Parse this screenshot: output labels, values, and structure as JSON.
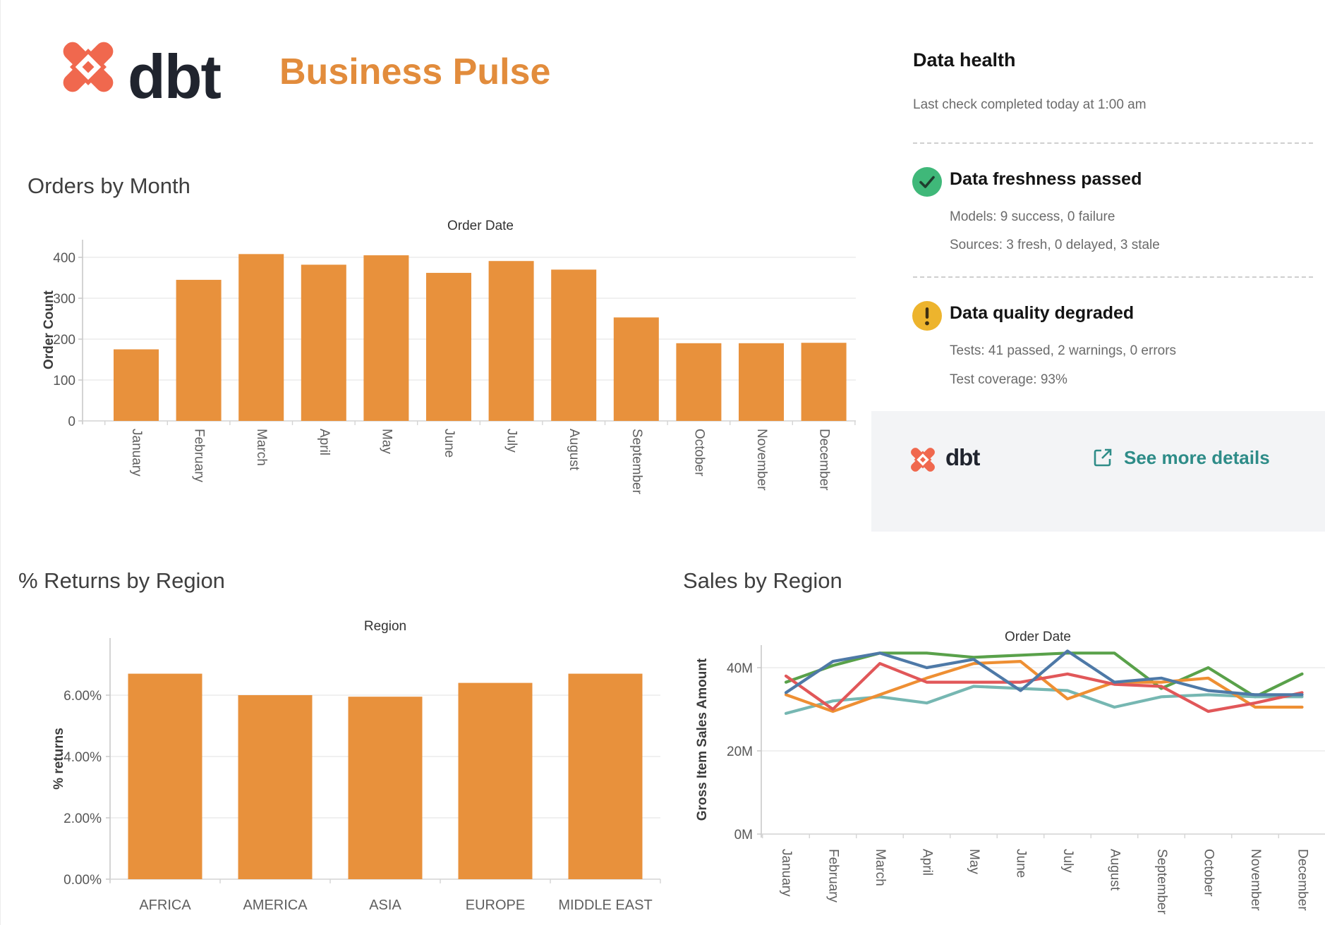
{
  "header": {
    "brand_wordmark": "dbt",
    "title": "Business Pulse",
    "title_color": "#E28C3C",
    "logo_color": "#F0684E"
  },
  "data_health": {
    "title": "Data health",
    "last_check": "Last check completed today at 1:00 am",
    "sections": [
      {
        "status": "passed",
        "icon": "check-circle-icon",
        "icon_color": "#3FB879",
        "title": "Data freshness passed",
        "lines": [
          "Models: 9 success, 0 failure",
          "Sources: 3 fresh, 0 delayed, 3 stale"
        ]
      },
      {
        "status": "warning",
        "icon": "warning-circle-icon",
        "icon_color": "#EDB42D",
        "title": "Data quality degraded",
        "lines": [
          "Tests: 41 passed, 2 warnings, 0 errors",
          "Test coverage: 93%"
        ]
      }
    ],
    "footer": {
      "brand_wordmark": "dbt",
      "link_label": "See more details",
      "link_icon": "external-link-icon",
      "link_color": "#2E8C88"
    }
  },
  "chart_data": [
    {
      "id": "orders_by_month",
      "type": "bar",
      "title": "Orders by Month",
      "top_axis_label": "Order Date",
      "ylabel": "Order Count",
      "categories": [
        "January",
        "February",
        "March",
        "April",
        "May",
        "June",
        "July",
        "August",
        "September",
        "October",
        "November",
        "December"
      ],
      "values": [
        175,
        345,
        408,
        382,
        405,
        362,
        391,
        370,
        253,
        190,
        190,
        191
      ],
      "yticks": [
        {
          "v": 0,
          "label": "0"
        },
        {
          "v": 100,
          "label": "100"
        },
        {
          "v": 200,
          "label": "200"
        },
        {
          "v": 300,
          "label": "300"
        },
        {
          "v": 400,
          "label": "400"
        }
      ],
      "ylim": [
        0,
        443
      ],
      "bar_color": "#E8913C",
      "grid": true,
      "rotated_category_labels": true,
      "legend": "none"
    },
    {
      "id": "returns_by_region",
      "type": "bar",
      "title": "% Returns by Region",
      "top_axis_label": "Region",
      "ylabel": "% returns",
      "categories": [
        "AFRICA",
        "AMERICA",
        "ASIA",
        "EUROPE",
        "MIDDLE EAST"
      ],
      "values": [
        6.7,
        6.0,
        5.95,
        6.4,
        6.7
      ],
      "yticks": [
        {
          "v": 0,
          "label": "0.00%"
        },
        {
          "v": 2,
          "label": "2.00%"
        },
        {
          "v": 4,
          "label": "4.00%"
        },
        {
          "v": 6,
          "label": "6.00%"
        }
      ],
      "ylim": [
        0,
        7.85
      ],
      "bar_color": "#E8913C",
      "grid": true,
      "rotated_category_labels": false,
      "legend": "none"
    },
    {
      "id": "sales_by_region",
      "type": "line",
      "title": "Sales by Region",
      "top_axis_label": "Order Date",
      "ylabel": "Gross Item Sales Amount",
      "values_unit": "millions",
      "categories": [
        "January",
        "February",
        "March",
        "April",
        "May",
        "June",
        "July",
        "August",
        "September",
        "October",
        "November",
        "December"
      ],
      "series": [
        {
          "name": "green",
          "color": "#59A14A",
          "values": [
            36.5,
            40.5,
            43.5,
            43.5,
            42.5,
            43,
            43.5,
            43.5,
            35,
            40,
            33,
            38.5
          ]
        },
        {
          "name": "teal",
          "color": "#76B7B2",
          "values": [
            29,
            32,
            33,
            31.5,
            35.5,
            35,
            34.5,
            30.5,
            33,
            33.5,
            33,
            33
          ]
        },
        {
          "name": "orange",
          "color": "#EE8F33",
          "values": [
            33.5,
            29.5,
            33.5,
            37.5,
            41,
            41.5,
            32.5,
            36.5,
            36.5,
            37.5,
            30.5,
            30.5
          ]
        },
        {
          "name": "red",
          "color": "#E15759",
          "values": [
            38,
            30,
            41,
            36.5,
            36.5,
            36.5,
            38.5,
            36,
            35.5,
            29.5,
            31.5,
            34
          ]
        },
        {
          "name": "blue",
          "color": "#4E79A7",
          "values": [
            34,
            41.5,
            43.5,
            40,
            42,
            34.5,
            44,
            36.5,
            37.5,
            34.5,
            33.5,
            33.5
          ]
        }
      ],
      "yticks": [
        {
          "v": 0,
          "label": "0M"
        },
        {
          "v": 20,
          "label": "20M"
        },
        {
          "v": 40,
          "label": "40M"
        }
      ],
      "ylim": [
        0,
        46.5
      ],
      "grid": true,
      "rotated_category_labels": true,
      "legend": "none"
    }
  ]
}
